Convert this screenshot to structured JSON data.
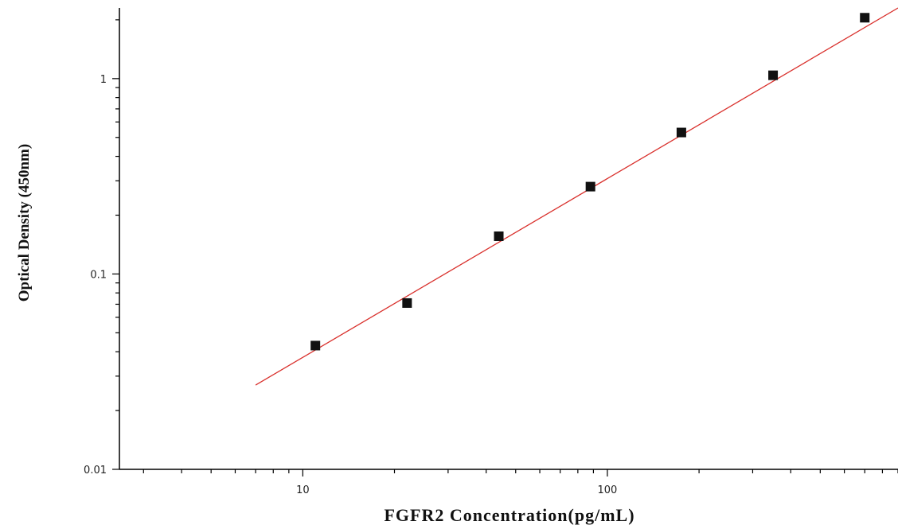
{
  "chart_data": {
    "type": "scatter",
    "title": "",
    "xlabel": "FGFR2  Concentration(pg/mL)",
    "ylabel": "Optical Density (450nm)",
    "xscale": "log",
    "yscale": "log",
    "xlim": [
      2.5,
      900
    ],
    "ylim": [
      0.01,
      2.3
    ],
    "grid": false,
    "legend": "none",
    "x_tick_labels": [
      {
        "value": 10,
        "label": "10"
      },
      {
        "value": 100,
        "label": "100"
      }
    ],
    "y_tick_labels": [
      {
        "value": 0.01,
        "label": "0.01"
      },
      {
        "value": 0.1,
        "label": "0.1"
      },
      {
        "value": 1,
        "label": "1"
      }
    ],
    "series": [
      {
        "kind": "points",
        "marker": "square",
        "color": "#111111",
        "x": [
          11,
          22,
          44,
          88,
          175,
          350,
          700
        ],
        "y": [
          0.043,
          0.071,
          0.156,
          0.28,
          0.53,
          1.04,
          2.05
        ]
      },
      {
        "kind": "fit-line",
        "color": "#d9302c",
        "x": [
          7,
          900
        ],
        "y": [
          0.027,
          2.3
        ]
      }
    ]
  }
}
